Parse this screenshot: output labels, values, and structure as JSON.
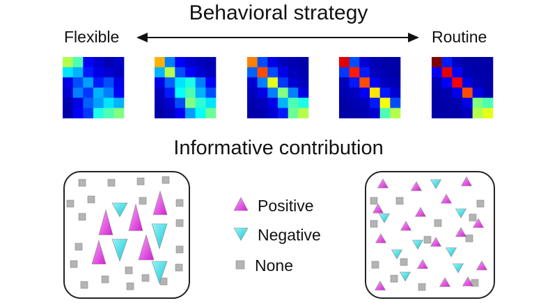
{
  "title": "Behavioral strategy",
  "subtitle": "Informative contribution",
  "scale": {
    "left": "Flexible",
    "right": "Routine"
  },
  "legend": [
    {
      "label": "Positive",
      "icon": "up-triangle-icon",
      "color": "#e040e0"
    },
    {
      "label": "Negative",
      "icon": "down-triangle-icon",
      "color": "#20d8e0"
    },
    {
      "label": "None",
      "icon": "square-icon",
      "color": "#b0b0b0"
    }
  ],
  "matrices": [
    [
      [
        0.55,
        0.45,
        0.12,
        0.08,
        0.05,
        0.07
      ],
      [
        0.35,
        0.3,
        0.15,
        0.1,
        0.08,
        0.06
      ],
      [
        0.1,
        0.2,
        0.28,
        0.15,
        0.2,
        0.1
      ],
      [
        0.08,
        0.25,
        0.18,
        0.3,
        0.25,
        0.12
      ],
      [
        0.05,
        0.1,
        0.22,
        0.28,
        0.35,
        0.3
      ],
      [
        0.04,
        0.12,
        0.18,
        0.4,
        0.45,
        0.5
      ]
    ],
    [
      [
        0.7,
        0.25,
        0.12,
        0.08,
        0.06,
        0.05
      ],
      [
        0.3,
        0.55,
        0.2,
        0.12,
        0.08,
        0.06
      ],
      [
        0.1,
        0.22,
        0.35,
        0.4,
        0.25,
        0.12
      ],
      [
        0.06,
        0.15,
        0.38,
        0.45,
        0.3,
        0.2
      ],
      [
        0.05,
        0.08,
        0.2,
        0.5,
        0.42,
        0.35
      ],
      [
        0.04,
        0.06,
        0.12,
        0.28,
        0.38,
        0.48
      ]
    ],
    [
      [
        0.75,
        0.2,
        0.1,
        0.06,
        0.05,
        0.04
      ],
      [
        0.22,
        0.8,
        0.2,
        0.1,
        0.06,
        0.05
      ],
      [
        0.08,
        0.25,
        0.6,
        0.18,
        0.08,
        0.06
      ],
      [
        0.06,
        0.1,
        0.25,
        0.5,
        0.25,
        0.1
      ],
      [
        0.05,
        0.06,
        0.1,
        0.3,
        0.45,
        0.4
      ],
      [
        0.04,
        0.05,
        0.08,
        0.15,
        0.48,
        0.55
      ]
    ],
    [
      [
        0.9,
        0.2,
        0.08,
        0.05,
        0.04,
        0.04
      ],
      [
        0.18,
        0.85,
        0.15,
        0.06,
        0.05,
        0.04
      ],
      [
        0.06,
        0.15,
        0.8,
        0.12,
        0.06,
        0.05
      ],
      [
        0.05,
        0.06,
        0.12,
        0.65,
        0.15,
        0.08
      ],
      [
        0.04,
        0.05,
        0.06,
        0.15,
        0.62,
        0.2
      ],
      [
        0.04,
        0.04,
        0.05,
        0.08,
        0.45,
        0.55
      ]
    ],
    [
      [
        1.0,
        0.15,
        0.06,
        0.04,
        0.04,
        0.04
      ],
      [
        0.12,
        0.9,
        0.12,
        0.05,
        0.04,
        0.04
      ],
      [
        0.05,
        0.12,
        0.88,
        0.1,
        0.05,
        0.04
      ],
      [
        0.04,
        0.05,
        0.1,
        0.8,
        0.1,
        0.05
      ],
      [
        0.04,
        0.04,
        0.05,
        0.1,
        0.5,
        0.45
      ],
      [
        0.04,
        0.04,
        0.04,
        0.06,
        0.55,
        0.6
      ]
    ]
  ]
}
